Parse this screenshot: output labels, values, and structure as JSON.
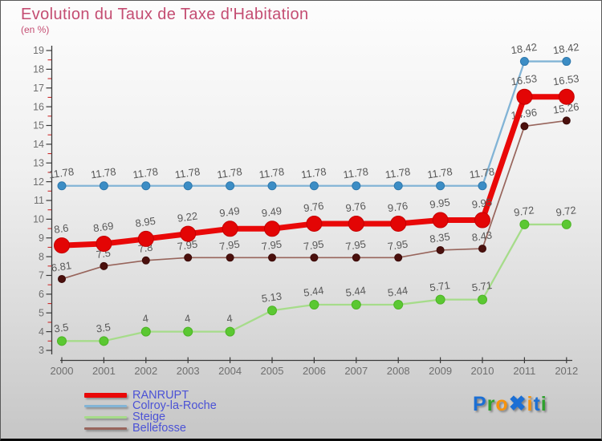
{
  "page": {
    "title": "Evolution du Taux de Taxe d'Habitation",
    "subtitle": "(en %)"
  },
  "colors": {
    "title": "#c44d72",
    "legend_text": "#4b52d6",
    "axis": "#3a3a3a",
    "tick_label": "#6e6e6e",
    "minor_tick": "#cc2a2a",
    "data_label": "#585858"
  },
  "chart_data": {
    "type": "line",
    "title": "Evolution du Taux de Taxe d'Habitation",
    "subtitle": "(en %)",
    "x_labels": [
      "2000",
      "2001",
      "2002",
      "2003",
      "2004",
      "2005",
      "2006",
      "2007",
      "2008",
      "2009",
      "2010",
      "2011",
      "2012"
    ],
    "y_ticks": [
      3,
      4,
      5,
      6,
      7,
      8,
      9,
      10,
      11,
      12,
      13,
      14,
      15,
      16,
      17,
      18,
      19
    ],
    "ylim": [
      3,
      19
    ],
    "y_minor_step": 0.5,
    "grid": false,
    "legend_position": "bottom-left",
    "series": [
      {
        "name": "RANRUPT",
        "line_color": "#e90808",
        "marker_color": "#e30505",
        "marker_stroke": "#c50000",
        "line_width": 7,
        "marker_r": 9.5,
        "values": [
          8.6,
          8.69,
          8.95,
          9.22,
          9.49,
          9.49,
          9.76,
          9.76,
          9.76,
          9.95,
          9.95,
          16.53,
          16.53
        ]
      },
      {
        "name": "Colroy-la-Roche",
        "line_color": "#82b4d6",
        "marker_color": "#3c8dc5",
        "marker_stroke": "#2f79ad",
        "line_width": 2.3,
        "marker_r": 5,
        "values": [
          11.78,
          11.78,
          11.78,
          11.78,
          11.78,
          11.78,
          11.78,
          11.78,
          11.78,
          11.78,
          11.78,
          18.42,
          18.42
        ]
      },
      {
        "name": "Steige",
        "line_color": "#a6dc8a",
        "marker_color": "#5bc832",
        "marker_stroke": "#4cb425",
        "line_width": 2.3,
        "marker_r": 5.5,
        "values": [
          3.5,
          3.5,
          4,
          4,
          4,
          5.13,
          5.44,
          5.44,
          5.44,
          5.71,
          5.71,
          9.72,
          9.72
        ]
      },
      {
        "name": "Bellefosse",
        "line_color": "#98655c",
        "marker_color": "#4b100d",
        "marker_stroke": "#3c0b09",
        "line_width": 1.7,
        "marker_r": 4.5,
        "values": [
          6.81,
          7.5,
          7.8,
          7.95,
          7.95,
          7.95,
          7.95,
          7.95,
          7.95,
          8.35,
          8.43,
          14.96,
          15.26
        ]
      }
    ]
  },
  "brand": {
    "name": "Proxiti",
    "letters": [
      {
        "char": "P",
        "color": "#1c6fd4"
      },
      {
        "char": "r",
        "color": "#2fa12e"
      },
      {
        "char": "o",
        "color": "#f7930c"
      },
      {
        "char": "✖",
        "color": "#1c6fd4",
        "big": true
      },
      {
        "char": "i",
        "color": "#f7930c"
      },
      {
        "char": "t",
        "color": "#1c6fd4"
      },
      {
        "char": "i",
        "color": "#2fa12e"
      }
    ]
  }
}
